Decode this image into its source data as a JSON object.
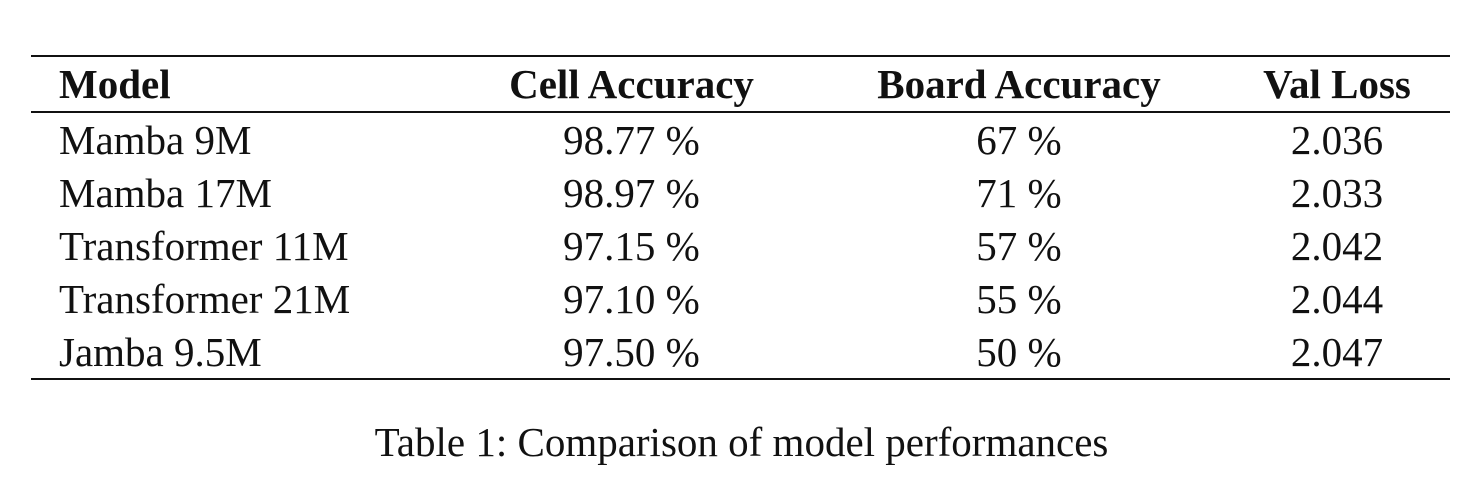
{
  "table": {
    "headers": [
      "Model",
      "Cell Accuracy",
      "Board Accuracy",
      "Val Loss"
    ],
    "rows": [
      [
        "Mamba 9M",
        "98.77 %",
        "67 %",
        "2.036"
      ],
      [
        "Mamba 17M",
        "98.97 %",
        "71 %",
        "2.033"
      ],
      [
        "Transformer 11M",
        "97.15 %",
        "57 %",
        "2.042"
      ],
      [
        "Transformer 21M",
        "97.10 %",
        "55 %",
        "2.044"
      ],
      [
        "Jamba 9.5M",
        "97.50 %",
        "50 %",
        "2.047"
      ]
    ]
  },
  "caption": "Table 1: Comparison of model performances"
}
